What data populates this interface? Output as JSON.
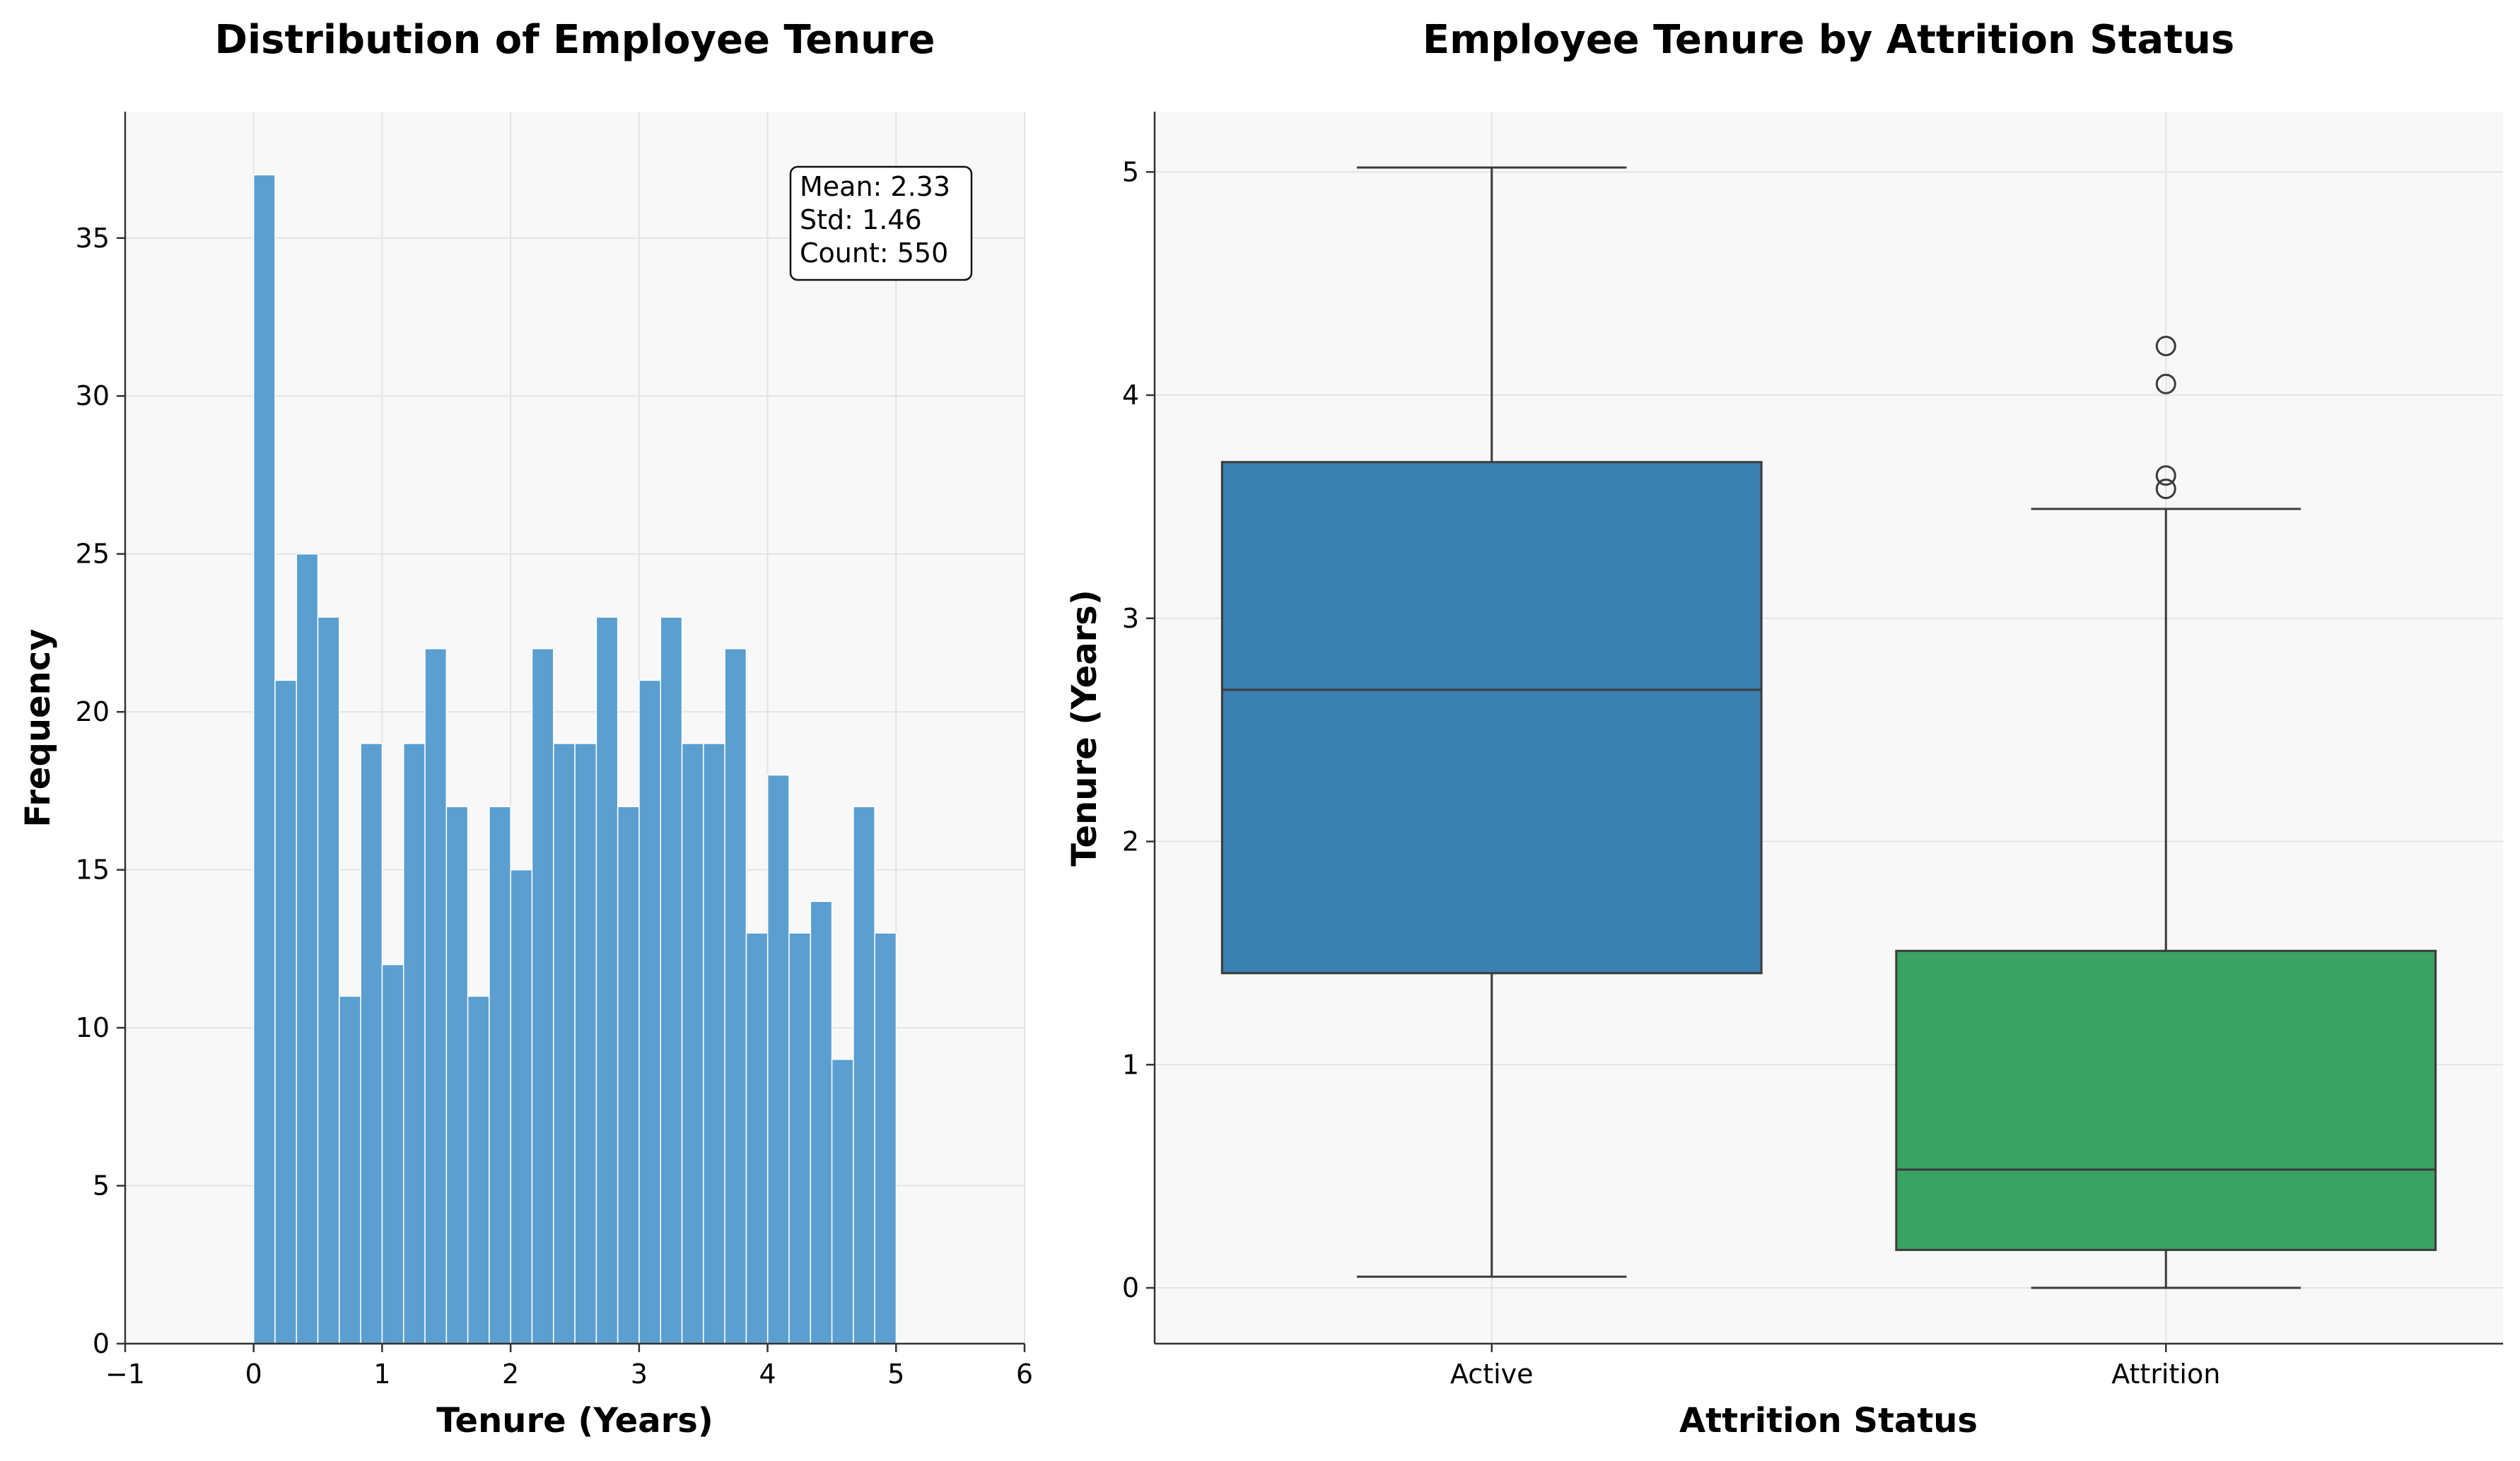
{
  "chart_data": [
    {
      "type": "bar",
      "title": "Distribution of Employee Tenure",
      "xlabel": "Tenure (Years)",
      "ylabel": "Frequency",
      "xlim": [
        -1,
        6
      ],
      "ylim": [
        0,
        39
      ],
      "xticks": [
        -1,
        0,
        1,
        2,
        3,
        4,
        5,
        6
      ],
      "yticks": [
        0,
        5,
        10,
        15,
        20,
        25,
        30,
        35
      ],
      "grid": true,
      "bar_color": "#5b9fd0",
      "bins": {
        "start": 0,
        "width": 0.1667,
        "counts": [
          37,
          21,
          25,
          23,
          11,
          19,
          12,
          19,
          22,
          17,
          11,
          17,
          15,
          22,
          19,
          19,
          23,
          17,
          21,
          23,
          19,
          19,
          22,
          13,
          18,
          13,
          14,
          9,
          17,
          13
        ]
      },
      "stats_box": [
        "Mean: 2.33",
        "Std: 1.46",
        "Count: 550"
      ]
    },
    {
      "type": "box",
      "title": "Employee Tenure by Attrition Status",
      "xlabel": "Attrition Status",
      "ylabel": "Tenure (Years)",
      "ylim": [
        -0.25,
        5.27
      ],
      "yticks": [
        0,
        1,
        2,
        3,
        4,
        5
      ],
      "grid": true,
      "categories": [
        "Active",
        "Attrition"
      ],
      "boxes": [
        {
          "category": "Active",
          "whisker_low": 0.05,
          "q1": 1.41,
          "median": 2.68,
          "q3": 3.7,
          "whisker_high": 5.02,
          "outliers": [],
          "color": "#3a80b0"
        },
        {
          "category": "Attrition",
          "whisker_low": 0.0,
          "q1": 0.17,
          "median": 0.53,
          "q3": 1.51,
          "whisker_high": 3.49,
          "outliers": [
            3.58,
            3.64,
            4.05,
            4.22
          ],
          "color": "#3aa262"
        }
      ]
    }
  ]
}
